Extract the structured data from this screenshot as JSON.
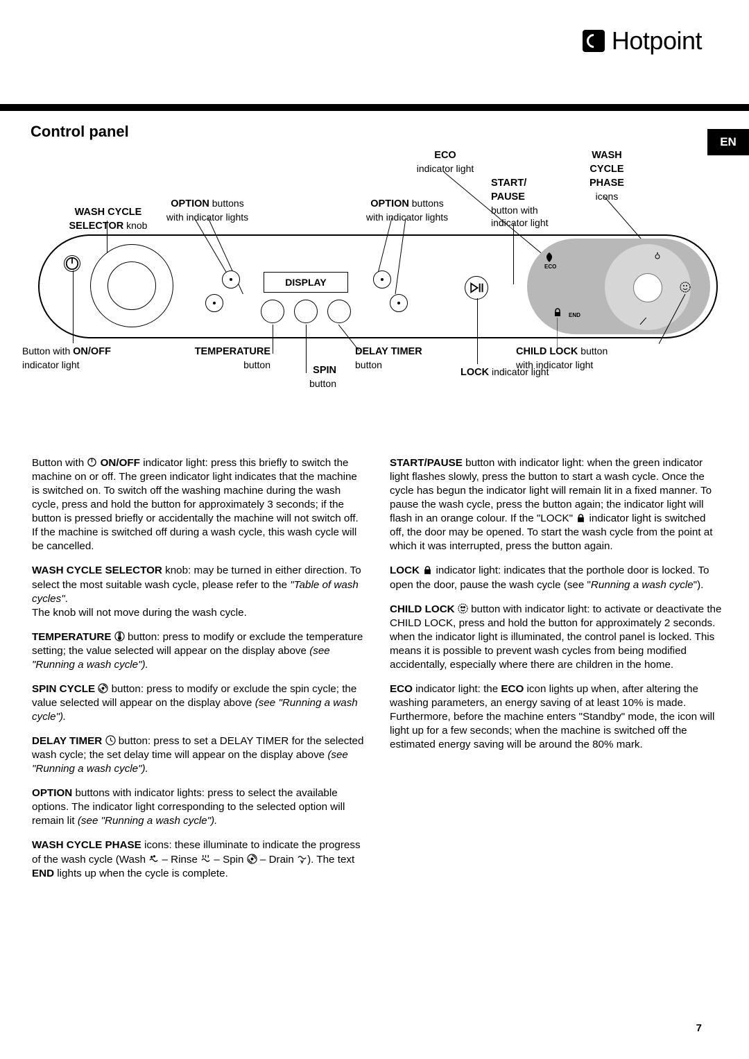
{
  "brand": "Hotpoint",
  "section_title": "Control panel",
  "lang": "EN",
  "page_number": "7",
  "callouts": {
    "wash_cycle_selector": {
      "bold": "WASH CYCLE SELECTOR",
      "rest": " knob"
    },
    "option_left": {
      "bold": "OPTION",
      "rest": " buttons",
      "sub": "with indicator lights"
    },
    "option_right": {
      "bold": "OPTION",
      "rest": " buttons",
      "sub": "with indicator lights"
    },
    "eco": {
      "bold": "ECO",
      "sub": "indicator light"
    },
    "start_pause": {
      "bold": "START/\nPAUSE",
      "sub": "button with\nindicator light"
    },
    "wash_cycle_phase": {
      "bold": "WASH\nCYCLE\nPHASE",
      "sub": "icons"
    },
    "display": "DISPLAY",
    "onoff_bottom": {
      "pre": "Button with ",
      "bold": "ON/OFF",
      "sub": "indicator light"
    },
    "temperature": {
      "bold": "TEMPERATURE",
      "sub": "button"
    },
    "spin": {
      "bold": "SPIN",
      "sub": "button"
    },
    "delay_timer": {
      "bold": "DELAY TIMER",
      "sub": "button"
    },
    "lock": {
      "bold": "LOCK",
      "rest": " indicator light"
    },
    "child_lock": {
      "bold": "CHILD LOCK",
      "rest": " button",
      "sub": "with indicator light"
    }
  },
  "panel": {
    "eco_label": "ECO",
    "end_label": "END"
  },
  "body": {
    "left": [
      {
        "parts": [
          "Button with ",
          {
            "icon": "power"
          },
          " ",
          {
            "b": "ON/OFF"
          },
          " indicator light: press this briefly to switch the machine on or off. The green indicator light indicates that the machine is switched on. To switch off the washing machine during the wash cycle, press and hold the button for approximately 3 seconds; if the button is pressed briefly or accidentally the machine will not switch off. If the machine is switched off during a wash cycle, this wash cycle will be cancelled."
        ]
      },
      {
        "parts": [
          {
            "b": "WASH CYCLE SELECTOR"
          },
          " knob: may be turned in either direction. To select the most suitable wash cycle, please refer to the ",
          {
            "i": "\"Table of wash cycles\""
          },
          ".",
          {
            "br": true
          },
          "The knob will not move during the wash cycle."
        ]
      },
      {
        "parts": [
          {
            "b": "TEMPERATURE"
          },
          " ",
          {
            "icon": "temp"
          },
          " button: press to modify or exclude the temperature setting; the value selected will appear on the display above ",
          {
            "i": "(see \"Running a wash cycle\")."
          }
        ]
      },
      {
        "parts": [
          {
            "b": "SPIN CYCLE"
          },
          " ",
          {
            "icon": "spin"
          },
          " button: press to modify or exclude the spin cycle; the value selected will appear on the display above ",
          {
            "i": "(see \"Running a wash cycle\")."
          }
        ]
      },
      {
        "parts": [
          {
            "b": "DELAY TIMER"
          },
          " ",
          {
            "icon": "clock"
          },
          " button: press to set a DELAY TIMER for the selected wash cycle; the set delay time will appear on the display above ",
          {
            "i": "(see \"Running a wash cycle\")."
          }
        ]
      },
      {
        "parts": [
          {
            "b": "OPTION"
          },
          " buttons with indicator lights: press to select the available options. The indicator light corresponding to the selected option will remain lit ",
          {
            "i": "(see \"Running a wash cycle\")."
          }
        ]
      },
      {
        "parts": [
          {
            "b": "WASH CYCLE PHASE"
          },
          " icons: these illuminate to indicate the progress of the wash cycle (Wash ",
          {
            "icon": "wash"
          },
          " – Rinse ",
          {
            "icon": "rinse"
          },
          " – Spin ",
          {
            "icon": "spin"
          },
          " – Drain ",
          {
            "icon": "drain"
          },
          "). The text ",
          {
            "b": "END"
          },
          " lights up when the cycle is complete."
        ]
      }
    ],
    "right": [
      {
        "parts": [
          {
            "b": "START/PAUSE"
          },
          " button with indicator light: when the green indicator light flashes slowly, press the button to start a wash cycle. Once the cycle has begun the indicator light will remain lit in a fixed manner. To pause the wash cycle, press the button again; the indicator light will flash in an orange colour. If the \"LOCK\" ",
          {
            "icon": "lock"
          },
          " indicator light is switched off, the door may be opened. To start the wash cycle from the point at which it was interrupted, press the button again."
        ]
      },
      {
        "parts": [
          {
            "b": "LOCK"
          },
          " ",
          {
            "icon": "lock"
          },
          " indicator light: indicates that the porthole door is locked. To open the door, pause the wash cycle (see \"",
          {
            "i": "Running a wash cycle"
          },
          "\")."
        ]
      },
      {
        "parts": [
          {
            "b": "CHILD LOCK"
          },
          " ",
          {
            "icon": "childlock"
          },
          " button with indicator light: to activate or deactivate the CHILD LOCK, press and hold the button for approximately 2 seconds. when the indicator light is illuminated, the control panel is locked. This means it is possible to prevent wash cycles from being modified accidentally, especially where there are children in the home."
        ]
      },
      {
        "parts": [
          {
            "b": "ECO"
          },
          " indicator light: the ",
          {
            "b": "ECO"
          },
          " icon lights up when, after altering the washing parameters, an energy saving of at least 10% is made. Furthermore, before the machine enters \"Standby\" mode, the icon will light up for a few seconds; when the machine is switched off the estimated energy saving will be around the 80% mark."
        ]
      }
    ]
  }
}
